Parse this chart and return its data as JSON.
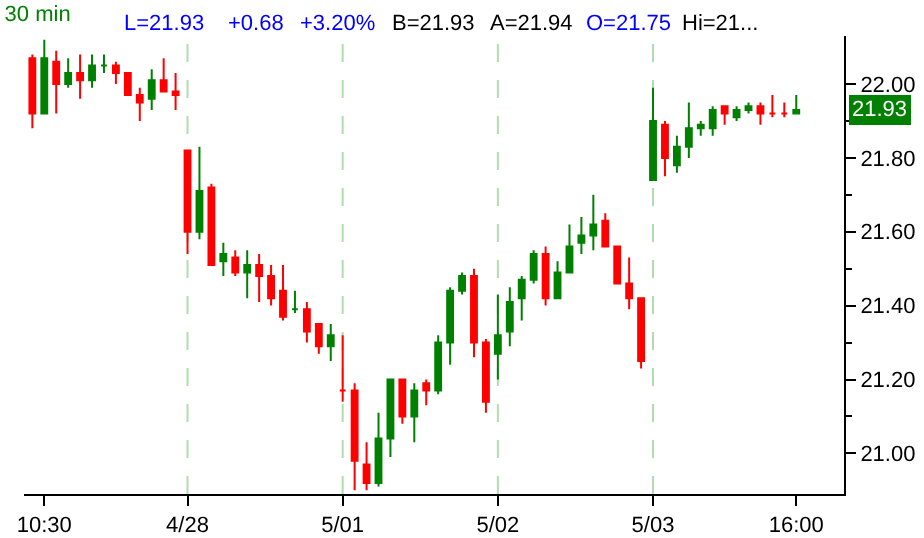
{
  "chart_data": {
    "type": "candlestick",
    "title": "30 min",
    "annotations": [
      "L=21.93",
      "+0.68",
      "+3.20%",
      "B=21.93",
      "A=21.94",
      "O=21.75",
      "Hi=21...",
      "21.93"
    ],
    "categories": [
      null,
      "10:30",
      null,
      null,
      null,
      null,
      null,
      null,
      null,
      null,
      null,
      null,
      null,
      "4/28",
      null,
      null,
      null,
      null,
      null,
      null,
      null,
      null,
      null,
      null,
      null,
      null,
      "5/01",
      null,
      null,
      null,
      null,
      null,
      null,
      null,
      null,
      null,
      null,
      null,
      null,
      "5/02",
      null,
      null,
      null,
      null,
      null,
      null,
      null,
      null,
      null,
      null,
      null,
      null,
      "5/03",
      null,
      null,
      null,
      null,
      null,
      null,
      null,
      null,
      null,
      null,
      null,
      "16:00"
    ],
    "ohlc": [
      [
        22.07,
        22.08,
        21.88,
        21.92
      ],
      [
        21.92,
        22.12,
        21.92,
        22.07
      ],
      [
        22.06,
        22.09,
        21.92,
        22.0
      ],
      [
        22.0,
        22.07,
        21.99,
        22.03
      ],
      [
        22.03,
        22.08,
        21.96,
        22.01
      ],
      [
        22.01,
        22.08,
        21.99,
        22.05
      ],
      [
        22.05,
        22.08,
        22.03,
        22.05
      ],
      [
        22.05,
        22.06,
        22.0,
        22.03
      ],
      [
        22.03,
        22.03,
        21.97,
        21.97
      ],
      [
        21.97,
        21.99,
        21.9,
        21.95
      ],
      [
        21.96,
        22.04,
        21.93,
        22.01
      ],
      [
        22.01,
        22.07,
        21.98,
        21.98
      ],
      [
        21.98,
        22.03,
        21.93,
        21.97
      ],
      [
        21.82,
        21.82,
        21.54,
        21.6
      ],
      [
        21.6,
        21.83,
        21.58,
        21.71
      ],
      [
        21.72,
        21.73,
        21.51,
        21.51
      ],
      [
        21.52,
        21.57,
        21.48,
        21.54
      ],
      [
        21.53,
        21.55,
        21.48,
        21.49
      ],
      [
        21.49,
        21.55,
        21.42,
        21.51
      ],
      [
        21.51,
        21.54,
        21.41,
        21.48
      ],
      [
        21.48,
        21.51,
        21.4,
        21.42
      ],
      [
        21.44,
        21.51,
        21.36,
        21.37
      ],
      [
        21.39,
        21.44,
        21.38,
        21.39
      ],
      [
        21.39,
        21.41,
        21.3,
        21.33
      ],
      [
        21.35,
        21.35,
        21.27,
        21.29
      ],
      [
        21.29,
        21.35,
        21.25,
        21.32
      ],
      [
        21.17,
        21.32,
        21.14,
        21.17
      ],
      [
        21.17,
        21.19,
        20.9,
        20.98
      ],
      [
        20.97,
        21.03,
        20.9,
        20.92
      ],
      [
        20.92,
        21.11,
        20.91,
        21.04
      ],
      [
        21.04,
        21.2,
        20.99,
        21.2
      ],
      [
        21.2,
        21.2,
        21.08,
        21.1
      ],
      [
        21.1,
        21.19,
        21.03,
        21.17
      ],
      [
        21.19,
        21.2,
        21.13,
        21.17
      ],
      [
        21.17,
        21.32,
        21.16,
        21.3
      ],
      [
        21.3,
        21.45,
        21.24,
        21.44
      ],
      [
        21.44,
        21.49,
        21.43,
        21.48
      ],
      [
        21.48,
        21.5,
        21.26,
        21.3
      ],
      [
        21.3,
        21.31,
        21.11,
        21.14
      ],
      [
        21.27,
        21.43,
        21.2,
        21.32
      ],
      [
        21.33,
        21.45,
        21.29,
        21.41
      ],
      [
        21.42,
        21.48,
        21.36,
        21.47
      ],
      [
        21.47,
        21.55,
        21.46,
        21.54
      ],
      [
        21.54,
        21.56,
        21.4,
        21.42
      ],
      [
        21.42,
        21.52,
        21.42,
        21.49
      ],
      [
        21.49,
        21.62,
        21.49,
        21.56
      ],
      [
        21.57,
        21.64,
        21.54,
        21.59
      ],
      [
        21.59,
        21.7,
        21.55,
        21.62
      ],
      [
        21.63,
        21.65,
        21.56,
        21.56
      ],
      [
        21.56,
        21.56,
        21.46,
        21.46
      ],
      [
        21.46,
        21.53,
        21.39,
        21.42
      ],
      [
        21.42,
        21.42,
        21.23,
        21.25
      ],
      [
        21.74,
        21.99,
        21.74,
        21.9
      ],
      [
        21.89,
        21.9,
        21.75,
        21.8
      ],
      [
        21.78,
        21.86,
        21.76,
        21.83
      ],
      [
        21.83,
        21.95,
        21.8,
        21.88
      ],
      [
        21.88,
        21.9,
        21.86,
        21.89
      ],
      [
        21.88,
        21.94,
        21.86,
        21.93
      ],
      [
        21.94,
        21.94,
        21.89,
        21.92
      ],
      [
        21.91,
        21.94,
        21.9,
        21.93
      ],
      [
        21.93,
        21.95,
        21.92,
        21.94
      ],
      [
        21.94,
        21.95,
        21.89,
        21.92
      ],
      [
        21.92,
        21.97,
        21.91,
        21.92
      ],
      [
        21.92,
        21.95,
        21.91,
        21.92
      ],
      [
        21.92,
        21.97,
        21.92,
        21.93
      ]
    ],
    "ylim": [
      20.89,
      22.13
    ],
    "yticks": [
      {
        "value": 21,
        "label": "21.00"
      },
      {
        "value": 21.2,
        "label": "21.20"
      },
      {
        "value": 21.4,
        "label": "21.40"
      },
      {
        "value": 21.6,
        "label": "21.60"
      },
      {
        "value": 21.8,
        "label": "21.80"
      },
      {
        "value": 22,
        "label": "22.00"
      }
    ],
    "ref_lines": [
      {
        "axis": "x",
        "value": "4/28",
        "color": "#b0dcb0",
        "line_style": "dashed"
      },
      {
        "axis": "x",
        "value": "5/01",
        "color": "#b0dcb0",
        "line_style": "dashed"
      },
      {
        "axis": "x",
        "value": "5/02",
        "color": "#b0dcb0",
        "line_style": "dashed"
      },
      {
        "axis": "x",
        "value": "5/03",
        "color": "#b0dcb0",
        "line_style": "dashed"
      }
    ],
    "grid": false,
    "legend": false
  }
}
